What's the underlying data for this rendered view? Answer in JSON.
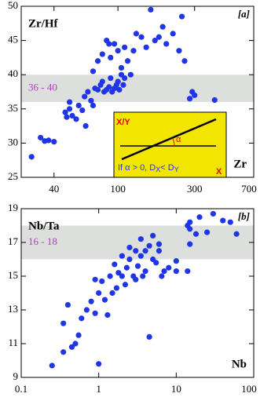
{
  "chart_data": [
    {
      "type": "scatter",
      "y_label": "Zr/Hf",
      "x_label": "Zr",
      "panel_label": "[a]",
      "color": "#1f35e6",
      "log_x": true,
      "xlim": [
        25,
        700
      ],
      "xticks": [
        40,
        100,
        300,
        700
      ],
      "ylim": [
        25,
        50
      ],
      "yticks": [
        25,
        30,
        35,
        40,
        45,
        50
      ],
      "band": {
        "range": [
          36,
          40
        ],
        "label": "36 - 40",
        "color": "#dcdfdc"
      },
      "inset": {
        "y_label": "X/Y",
        "angle": "α",
        "condition": "If α > 0, D",
        "sub_x": "X",
        "relation": "< D",
        "sub_y": "Y",
        "x_label": "X"
      },
      "x": [
        29,
        33,
        35,
        37,
        40,
        47,
        48,
        50,
        52,
        55,
        50,
        57,
        60,
        62,
        63,
        65,
        68,
        70,
        72,
        75,
        78,
        80,
        82,
        85,
        88,
        90,
        92,
        95,
        98,
        100,
        105,
        102,
        110,
        108,
        70,
        75,
        80,
        85,
        88,
        90,
        95,
        100,
        105,
        110,
        115,
        120,
        125,
        130,
        140,
        150,
        160,
        170,
        180,
        190,
        200,
        220,
        240,
        250,
        260,
        280,
        300,
        400,
        290
      ],
      "values": [
        28,
        30.8,
        30.3,
        30.4,
        30.2,
        34.5,
        33.8,
        35,
        34,
        33.5,
        36,
        35.5,
        34.8,
        36.8,
        32.5,
        37.5,
        36.2,
        35.5,
        38,
        37.8,
        38.5,
        39,
        37.5,
        37.8,
        38.2,
        39.5,
        37.5,
        38,
        38.5,
        39,
        40,
        37.8,
        39.5,
        38.5,
        40.5,
        42,
        43,
        45,
        44.5,
        42.5,
        44.5,
        43.5,
        41,
        44,
        42,
        40,
        43.5,
        46,
        45.5,
        44,
        49.5,
        45,
        45.5,
        47,
        44.5,
        46,
        43.5,
        48.5,
        42,
        36.5,
        37,
        36.3,
        37.5
      ]
    },
    {
      "type": "scatter",
      "y_label": "Nb/Ta",
      "x_label": "Nb",
      "panel_label": "[b]",
      "color": "#1f35e6",
      "log_x": true,
      "xlim": [
        0.1,
        100
      ],
      "xticks": [
        0.1,
        1,
        10,
        100
      ],
      "ylim": [
        9,
        19
      ],
      "yticks": [
        9,
        11,
        13,
        15,
        17,
        19
      ],
      "band": {
        "range": [
          16,
          18
        ],
        "label": "16 - 18",
        "color": "#dcdfdc"
      },
      "x": [
        0.25,
        0.35,
        0.45,
        0.5,
        0.35,
        0.55,
        0.4,
        0.6,
        0.8,
        0.7,
        0.9,
        1,
        1,
        1.1,
        1.2,
        1.3,
        0.9,
        1.5,
        1.4,
        1.6,
        1.7,
        1.8,
        2,
        2,
        2.2,
        2.3,
        2.5,
        2.5,
        2.8,
        3,
        3,
        3.2,
        3.5,
        3.5,
        3.7,
        4,
        4,
        4.5,
        4.5,
        5,
        5,
        5.5,
        6,
        6.5,
        7,
        8,
        6,
        10,
        10,
        14,
        15,
        15,
        15,
        18,
        20,
        25,
        30,
        40,
        50,
        60,
        14
      ],
      "values": [
        9.7,
        10.5,
        10.8,
        11,
        12.2,
        11.5,
        13.3,
        12.5,
        13.5,
        13,
        12.8,
        9.8,
        14,
        14.7,
        13.6,
        12.7,
        14.8,
        14,
        15,
        15.7,
        14.3,
        15.2,
        15,
        16.2,
        14.5,
        15.5,
        16,
        16.7,
        15,
        16.5,
        14.8,
        15.6,
        16.2,
        17.2,
        15,
        16.5,
        15.3,
        16.8,
        11.4,
        17.4,
        16,
        15.8,
        16.5,
        15,
        15.3,
        15.5,
        16.9,
        15.3,
        15.9,
        18,
        17.8,
        18.2,
        16.9,
        17.5,
        18.5,
        17.6,
        18.7,
        18.3,
        18.2,
        17.5,
        15.3
      ]
    }
  ]
}
